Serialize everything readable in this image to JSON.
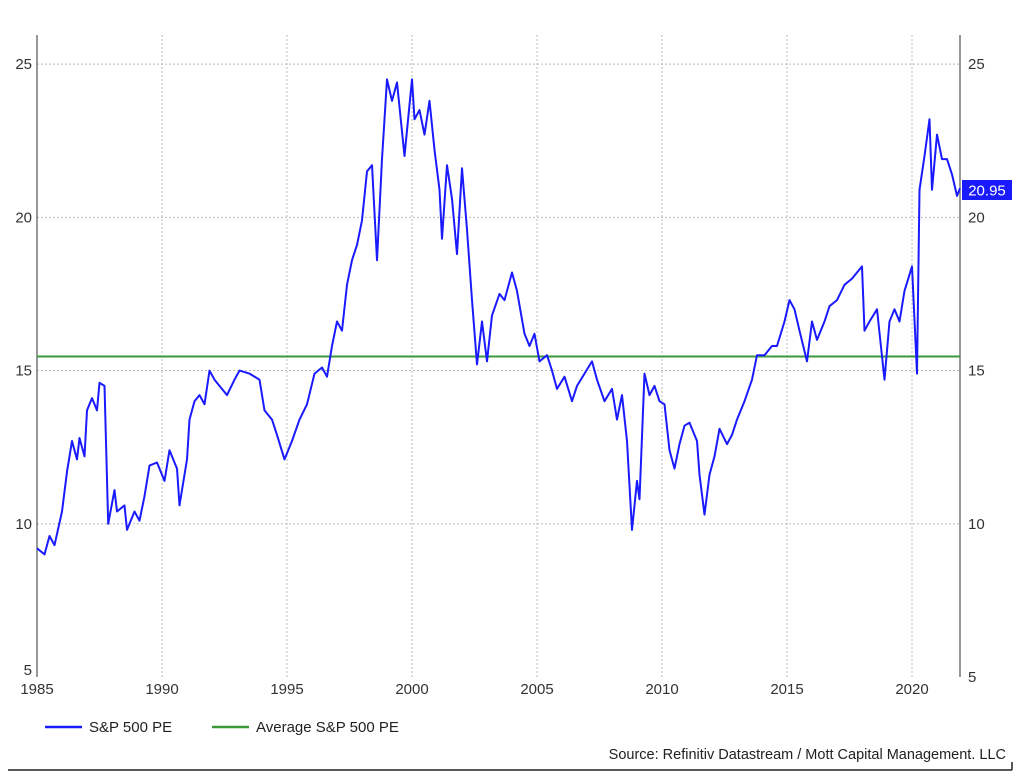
{
  "chart_data": {
    "type": "line",
    "title": "",
    "xlabel": "",
    "ylabel": "",
    "xlim": [
      1985,
      2021.92
    ],
    "ylim": [
      5,
      25.95
    ],
    "grid": true,
    "x_ticks": [
      "1985",
      "1990",
      "1995",
      "2000",
      "2005",
      "2010",
      "2015",
      "2020"
    ],
    "x_tick_values": [
      1985,
      1990,
      1995,
      2000,
      2005,
      2010,
      2015,
      2020
    ],
    "y_ticks": [
      "5",
      "10",
      "15",
      "20",
      "25"
    ],
    "y_tick_values": [
      5,
      10,
      15,
      20,
      25
    ],
    "legend_placement": "bottom-left",
    "last_value_label": "20.95",
    "source": "Source: Refinitiv Datastream / Mott Capital Management. LLC",
    "series": [
      {
        "name": "S&P 500 PE",
        "color": "#1a1aff",
        "x": [
          1985.0,
          1985.3,
          1985.5,
          1985.7,
          1986.0,
          1986.2,
          1986.4,
          1986.6,
          1986.7,
          1986.9,
          1987.0,
          1987.2,
          1987.4,
          1987.5,
          1987.7,
          1987.85,
          1988.1,
          1988.2,
          1988.5,
          1988.6,
          1988.9,
          1989.1,
          1989.3,
          1989.5,
          1989.8,
          1989.9,
          1990.1,
          1990.3,
          1990.6,
          1990.7,
          1991.0,
          1991.1,
          1991.3,
          1991.5,
          1991.7,
          1991.9,
          1992.1,
          1992.3,
          1992.6,
          1992.9,
          1993.1,
          1993.5,
          1993.9,
          1994.1,
          1994.4,
          1994.6,
          1994.9,
          1995.2,
          1995.5,
          1995.8,
          1996.1,
          1996.4,
          1996.6,
          1996.8,
          1997.0,
          1997.2,
          1997.4,
          1997.6,
          1997.8,
          1998.0,
          1998.2,
          1998.4,
          1998.6,
          1998.8,
          1999.0,
          1999.2,
          1999.4,
          1999.7,
          2000.0,
          2000.1,
          2000.3,
          2000.5,
          2000.7,
          2000.9,
          2001.1,
          2001.2,
          2001.4,
          2001.6,
          2001.8,
          2002.0,
          2002.2,
          2002.4,
          2002.6,
          2002.8,
          2003.0,
          2003.2,
          2003.5,
          2003.7,
          2004.0,
          2004.2,
          2004.5,
          2004.7,
          2004.9,
          2005.1,
          2005.4,
          2005.6,
          2005.8,
          2006.1,
          2006.4,
          2006.6,
          2006.9,
          2007.2,
          2007.4,
          2007.7,
          2008.0,
          2008.2,
          2008.4,
          2008.6,
          2008.8,
          2009.0,
          2009.1,
          2009.3,
          2009.5,
          2009.7,
          2009.9,
          2010.1,
          2010.3,
          2010.5,
          2010.7,
          2010.9,
          2011.1,
          2011.4,
          2011.5,
          2011.7,
          2011.9,
          2012.1,
          2012.3,
          2012.6,
          2012.8,
          2013.0,
          2013.3,
          2013.6,
          2013.8,
          2014.1,
          2014.4,
          2014.6,
          2014.9,
          2015.1,
          2015.3,
          2015.5,
          2015.8,
          2016.0,
          2016.2,
          2016.5,
          2016.7,
          2017.0,
          2017.3,
          2017.6,
          2018.0,
          2018.1,
          2018.3,
          2018.6,
          2018.9,
          2019.1,
          2019.3,
          2019.5,
          2019.7,
          2020.0,
          2020.2,
          2020.3,
          2020.5,
          2020.7,
          2020.8,
          2021.0,
          2021.2,
          2021.4,
          2021.6,
          2021.8,
          2021.92
        ],
        "y": [
          9.2,
          9.0,
          9.6,
          9.3,
          10.4,
          11.7,
          12.7,
          12.1,
          12.8,
          12.2,
          13.7,
          14.1,
          13.7,
          14.6,
          14.5,
          10.0,
          11.1,
          10.4,
          10.6,
          9.8,
          10.4,
          10.1,
          10.9,
          11.9,
          12.0,
          11.8,
          11.4,
          12.4,
          11.8,
          10.6,
          12.1,
          13.4,
          14.0,
          14.2,
          13.9,
          15.0,
          14.7,
          14.5,
          14.2,
          14.7,
          15.0,
          14.9,
          14.7,
          13.7,
          13.4,
          12.9,
          12.1,
          12.7,
          13.4,
          13.9,
          14.9,
          15.1,
          14.8,
          15.8,
          16.6,
          16.3,
          17.8,
          18.6,
          19.1,
          19.9,
          21.5,
          21.7,
          18.6,
          21.9,
          24.5,
          23.8,
          24.4,
          22.0,
          24.5,
          23.2,
          23.5,
          22.7,
          23.8,
          22.2,
          20.9,
          19.3,
          21.7,
          20.6,
          18.8,
          21.6,
          19.6,
          17.3,
          15.2,
          16.6,
          15.3,
          16.8,
          17.5,
          17.3,
          18.2,
          17.6,
          16.2,
          15.8,
          16.2,
          15.3,
          15.5,
          15.0,
          14.4,
          14.8,
          14.0,
          14.5,
          14.9,
          15.3,
          14.7,
          14.0,
          14.4,
          13.4,
          14.2,
          12.7,
          9.8,
          11.4,
          10.8,
          14.9,
          14.2,
          14.5,
          14.0,
          13.9,
          12.4,
          11.8,
          12.6,
          13.2,
          13.3,
          12.7,
          11.6,
          10.3,
          11.6,
          12.2,
          13.1,
          12.6,
          12.9,
          13.4,
          14.0,
          14.7,
          15.5,
          15.5,
          15.8,
          15.8,
          16.6,
          17.3,
          17.0,
          16.3,
          15.3,
          16.6,
          16.0,
          16.6,
          17.1,
          17.3,
          17.8,
          18.0,
          18.4,
          16.3,
          16.6,
          17.0,
          14.7,
          16.6,
          17.0,
          16.6,
          17.6,
          18.4,
          14.9,
          20.9,
          22.0,
          23.2,
          20.9,
          22.7,
          21.9,
          21.9,
          21.4,
          20.7,
          20.95
        ]
      },
      {
        "name": "Average S&P 500 PE",
        "color": "#3a9a3a",
        "x": [
          1985,
          2021.92
        ],
        "y": [
          15.46,
          15.46
        ]
      }
    ]
  }
}
